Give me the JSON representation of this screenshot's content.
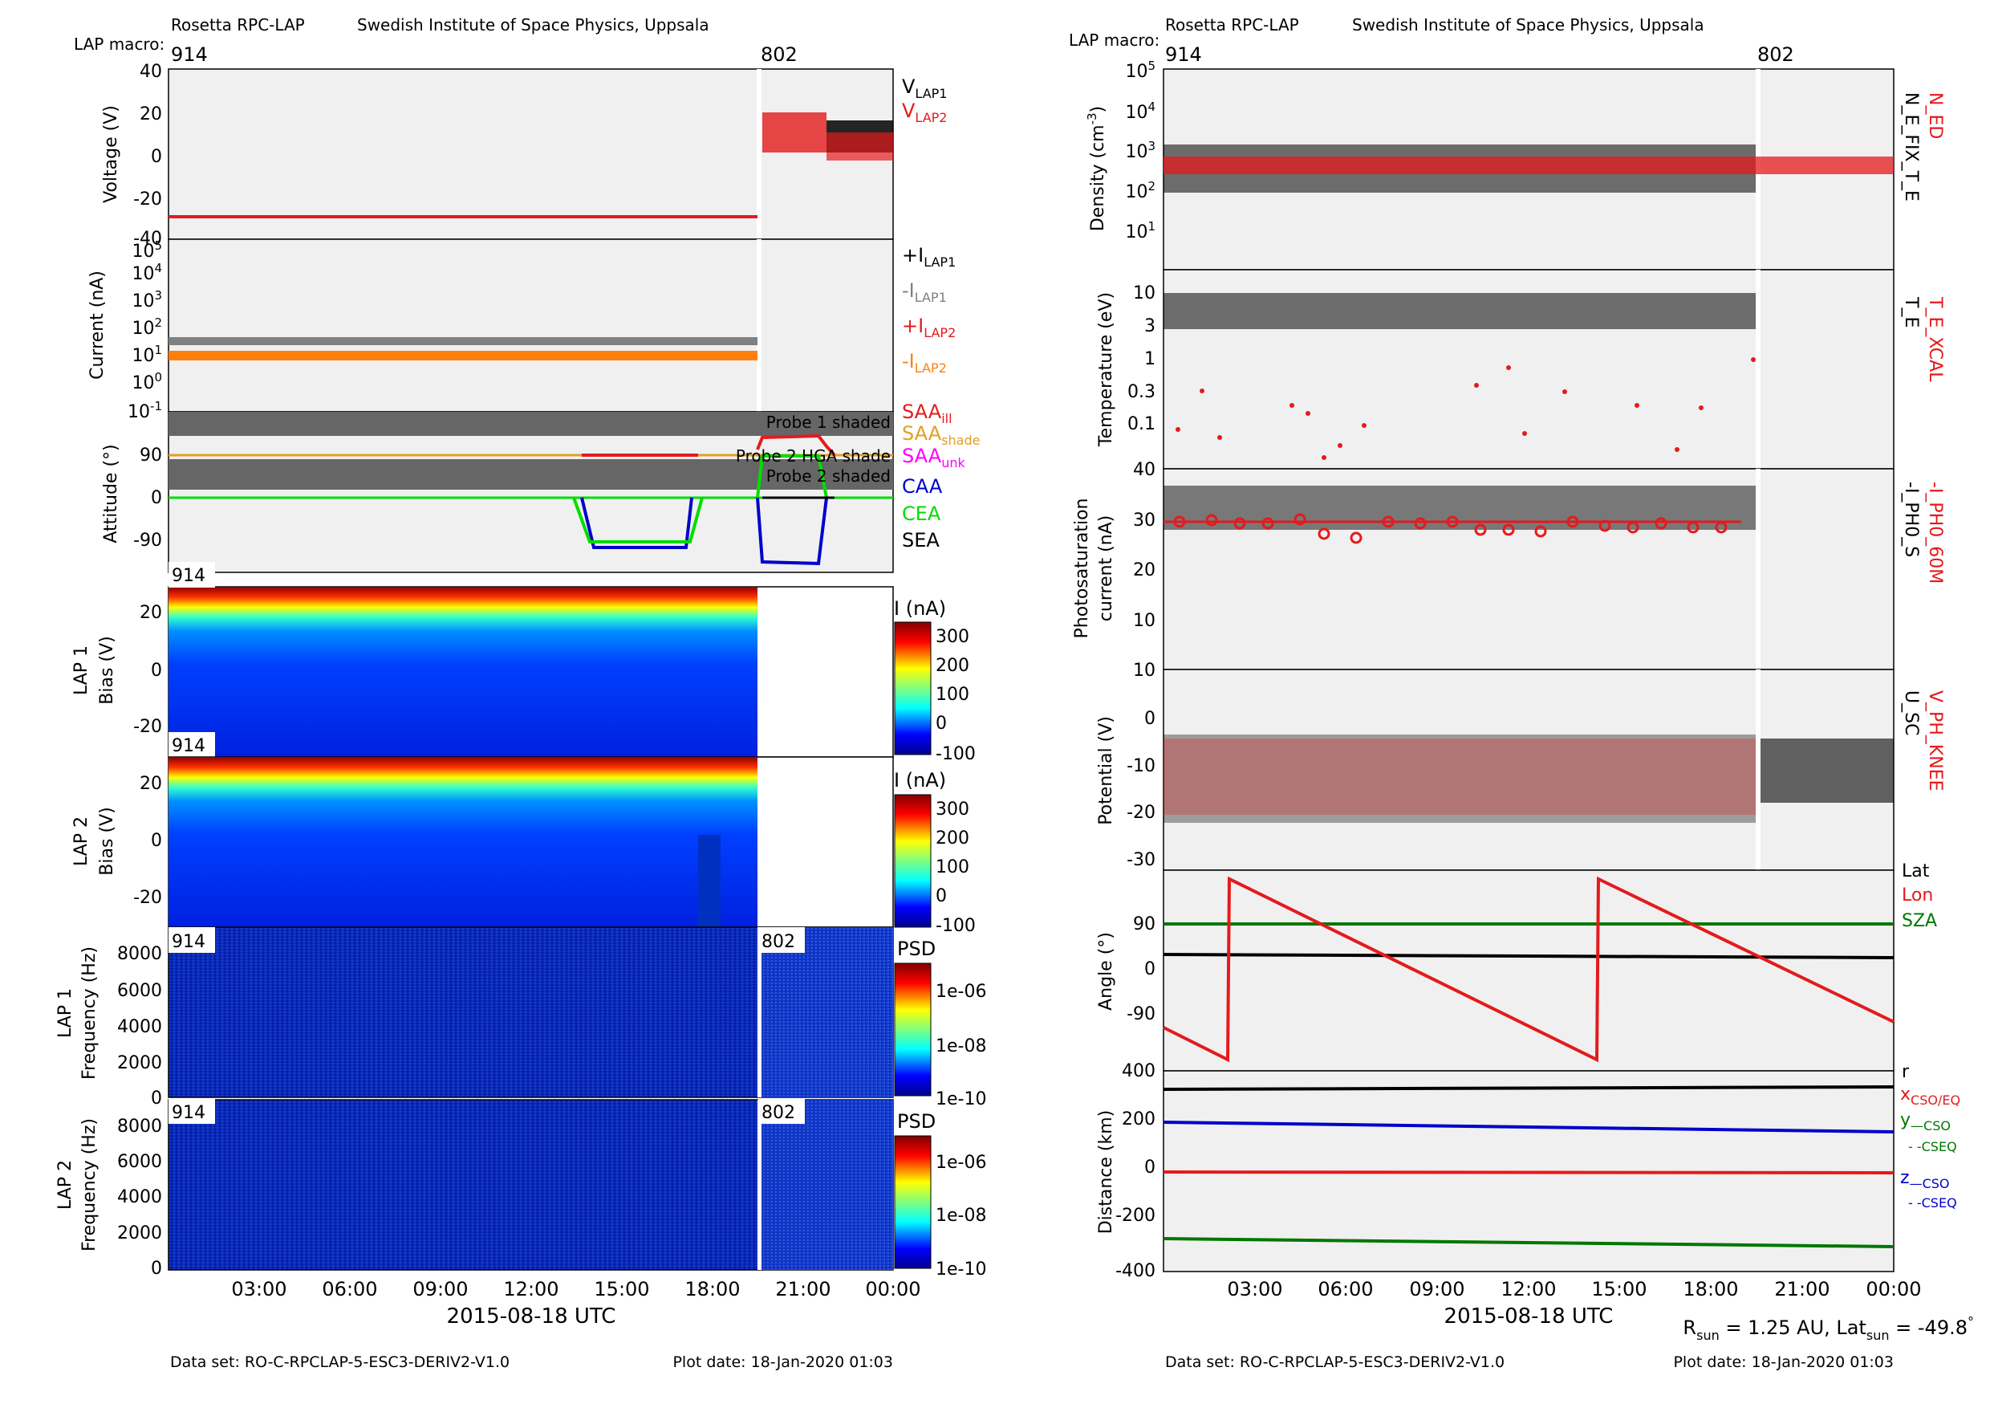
{
  "header": {
    "instrument": "Rosetta RPC-LAP",
    "institute": "Swedish Institute of Space Physics, Uppsala",
    "macro_label": "LAP macro:",
    "macros": [
      "914",
      "802"
    ]
  },
  "footer": {
    "dataset": "Data set: RO-C-RPCLAP-5-ESC3-DERIV2-V1.0",
    "plot_date": "Plot date: 18-Jan-2020 01:03",
    "date_label": "2015-08-18 UTC",
    "sun_info": "R_sun = 1.25 AU, Lat_sun = -49.8°"
  },
  "time_ticks": [
    "03:00",
    "06:00",
    "09:00",
    "12:00",
    "15:00",
    "18:00",
    "21:00",
    "00:00"
  ],
  "colors": {
    "lap1": "#000000",
    "lap2": "#e41a1c",
    "grey": "#808080",
    "orange": "#ff7f0e",
    "blue": "#0000cc",
    "green": "#00dd00",
    "magenta": "#ff00ff",
    "sza": "#007700",
    "panel_bg": "#f0f0f0",
    "shade": "#666666"
  },
  "chart_data": [
    {
      "type": "scatter",
      "panel": "voltage",
      "ylabel": "Voltage (V)",
      "ylim": [
        -40,
        40
      ],
      "yticks": [
        "40",
        "20",
        "0",
        "-20",
        "-40"
      ],
      "legend": [
        "V_LAP1",
        "V_LAP2"
      ],
      "series": [
        {
          "name": "V_LAP1",
          "x": [
            "19.4h",
            "21.5h",
            "24h"
          ],
          "values": [
            null,
            0,
            5
          ]
        },
        {
          "name": "V_LAP2",
          "x": [
            "0h",
            "19.4h",
            "20.5h",
            "22.5h",
            "24h"
          ],
          "values": [
            -30,
            -30,
            12,
            0,
            3
          ]
        }
      ]
    },
    {
      "type": "scatter",
      "panel": "current",
      "ylabel": "Current (nA)",
      "yscale": "log",
      "ylim": [
        0.1,
        100000
      ],
      "yticks": [
        "10^5",
        "10^4",
        "10^3",
        "10^2",
        "10^1",
        "10^0",
        "10^-1"
      ],
      "legend": [
        "+I_LAP1",
        "-I_LAP1",
        "+I_LAP2",
        "-I_LAP2"
      ],
      "series": [
        {
          "name": "-I_LAP1",
          "values": [
            30,
            30,
            35,
            30
          ]
        },
        {
          "name": "-I_LAP2",
          "values": [
            10,
            10,
            12,
            10
          ]
        }
      ]
    },
    {
      "type": "line",
      "panel": "attitude",
      "ylabel": "Attitude (°)",
      "ylim": [
        -135,
        135
      ],
      "yticks": [
        "90",
        "0",
        "-90"
      ],
      "legend": [
        "SAA_ill",
        "SAA_shade",
        "SAA_unk",
        "CAA",
        "CEA",
        "SEA"
      ],
      "annotations": [
        "Probe 1 shaded",
        "Probe 2 HGA shade",
        "Probe 2 shaded"
      ],
      "series": [
        {
          "name": "SAA_shade",
          "values": [
            90,
            90
          ]
        },
        {
          "name": "CAA",
          "x": [
            "0h",
            "14.8h",
            "15.5h",
            "18.5h",
            "19.2h",
            "20h",
            "21.5h",
            "24h"
          ],
          "values": [
            0,
            0,
            -105,
            -105,
            0,
            -130,
            0,
            0
          ]
        },
        {
          "name": "CEA",
          "x": [
            "0h",
            "14.8h",
            "15.5h",
            "18.5h",
            "19.2h",
            "20h",
            "21.5h",
            "24h"
          ],
          "values": [
            0,
            0,
            -95,
            -95,
            0,
            80,
            0,
            0
          ]
        }
      ]
    },
    {
      "type": "heatmap",
      "panel": "lap1_bias",
      "ylabel": "LAP 1 Bias (V)",
      "yticks": [
        "20",
        "0",
        "-20"
      ],
      "colorbar_label": "I (nA)",
      "colorbar_ticks": [
        "300",
        "200",
        "100",
        "0",
        "-100"
      ]
    },
    {
      "type": "heatmap",
      "panel": "lap2_bias",
      "ylabel": "LAP 2 Bias (V)",
      "yticks": [
        "20",
        "0",
        "-20"
      ],
      "colorbar_label": "I (nA)",
      "colorbar_ticks": [
        "300",
        "200",
        "100",
        "0",
        "-100"
      ]
    },
    {
      "type": "heatmap",
      "panel": "lap1_freq",
      "ylabel": "LAP 1 Frequency (Hz)",
      "yticks": [
        "8000",
        "6000",
        "4000",
        "2000",
        "0"
      ],
      "colorbar_label": "PSD",
      "colorbar_ticks": [
        "1e-06",
        "1e-08",
        "1e-10"
      ]
    },
    {
      "type": "heatmap",
      "panel": "lap2_freq",
      "ylabel": "LAP 2 Frequency (Hz)",
      "yticks": [
        "8000",
        "6000",
        "4000",
        "2000",
        "0"
      ],
      "colorbar_label": "PSD",
      "colorbar_ticks": [
        "1e-06",
        "1e-08",
        "1e-10"
      ]
    },
    {
      "type": "scatter",
      "panel": "density",
      "ylabel": "Density (cm^-3)",
      "yscale": "log",
      "ylim": [
        1,
        100000
      ],
      "yticks": [
        "10^5",
        "10^4",
        "10^3",
        "10^2",
        "10^1"
      ],
      "legend": [
        "N_ED",
        "N_E_FIX_T_E"
      ],
      "series": [
        {
          "name": "N_E_FIX_T_E",
          "values": [
            300,
            300
          ]
        },
        {
          "name": "N_ED",
          "values": [
            350,
            350
          ]
        }
      ]
    },
    {
      "type": "scatter",
      "panel": "temperature",
      "ylabel": "Temperature (eV)",
      "yscale": "log",
      "yticks": [
        "10",
        "3",
        "1",
        "0.3",
        "0.1"
      ],
      "legend": [
        "T_E_XCAL",
        "T_E"
      ],
      "series": [
        {
          "name": "T_E",
          "values": [
            5,
            5
          ]
        },
        {
          "name": "T_E_XCAL",
          "values": [
            0.1,
            0.3
          ]
        }
      ]
    },
    {
      "type": "scatter",
      "panel": "photosaturation",
      "ylabel": "Photosaturation current (nA)",
      "ylim": [
        10,
        40
      ],
      "yticks": [
        "40",
        "30",
        "20",
        "10"
      ],
      "legend": [
        "-I_PH0_60M",
        "-I_PH0_S"
      ],
      "series": [
        {
          "name": "-I_PH0_S",
          "values": [
            30,
            30
          ]
        },
        {
          "name": "-I_PH0_60M",
          "values": [
            29,
            28,
            26,
            30,
            28,
            29
          ]
        }
      ]
    },
    {
      "type": "scatter",
      "panel": "potential",
      "ylabel": "Potential (V)",
      "ylim": [
        -30,
        10
      ],
      "yticks": [
        "10",
        "0",
        "-10",
        "-20",
        "-30"
      ],
      "legend": [
        "V_PH_KNEE",
        "U_SC"
      ],
      "series": [
        {
          "name": "U_SC",
          "values": [
            -10,
            -10
          ]
        },
        {
          "name": "V_PH_KNEE",
          "values": [
            -10,
            -10
          ]
        }
      ]
    },
    {
      "type": "line",
      "panel": "angle",
      "ylabel": "Angle (°)",
      "ylim": [
        -180,
        180
      ],
      "yticks": [
        "90",
        "0",
        "-90"
      ],
      "legend": [
        "Lat",
        "Lon",
        "SZA"
      ],
      "series": [
        {
          "name": "Lat",
          "values": [
            30,
            28
          ]
        },
        {
          "name": "Lon",
          "x": [
            "0h",
            "2.1h",
            "2.2h",
            "14.2h",
            "14.3h",
            "24h"
          ],
          "values": [
            -105,
            -165,
            170,
            -165,
            170,
            -100
          ]
        },
        {
          "name": "SZA",
          "values": [
            90,
            90
          ]
        }
      ]
    },
    {
      "type": "line",
      "panel": "distance",
      "ylabel": "Distance (km)",
      "ylim": [
        -400,
        400
      ],
      "yticks": [
        "400",
        "200",
        "0",
        "-200",
        "-400"
      ],
      "legend": [
        "r",
        "x_CSO/EQ",
        "y_—CSO",
        "- -CSEQ",
        "z_—CSO",
        "- -CSEQ"
      ],
      "series": [
        {
          "name": "r",
          "values": [
            330,
            335
          ]
        },
        {
          "name": "y",
          "values": [
            195,
            160
          ]
        },
        {
          "name": "x",
          "values": [
            0,
            0
          ]
        },
        {
          "name": "z",
          "values": [
            -265,
            -295
          ]
        }
      ]
    }
  ]
}
